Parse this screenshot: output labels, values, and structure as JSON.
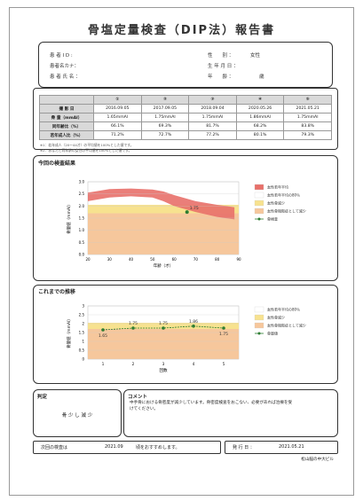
{
  "title": "骨塩定量検査（DIP法）報告書",
  "patient": {
    "id_label": "患 者 I D :",
    "kana_label": "患者名カナ：",
    "name_label": "患 者 氏 名 ：",
    "sex_label": "性　　別 ：",
    "sex_value": "女性",
    "dob_label": "生 年 月 日 ：",
    "age_label": "年　　齢 ：",
    "age_unit": "歳"
  },
  "results": {
    "row_labels": [
      "撮 影 日",
      "骨 量（mmAl）",
      "同年齢比（%）",
      "若年成人比（%）"
    ],
    "columns": [
      "①",
      "②",
      "③",
      "④",
      "⑤"
    ],
    "dates": [
      "2016.09.05",
      "2017.09.05",
      "2018.09.04",
      "2020.05.26",
      "2021.05.21"
    ],
    "bone": [
      "1.65mmAl",
      "1.75mmAl",
      "1.75mmAl",
      "1.86mmAl",
      "1.75mmAl"
    ],
    "same_age": [
      "66.1%",
      "69.3%",
      "81.7%",
      "68.2%",
      "83.8%"
    ],
    "young_adult": [
      "71.2%",
      "72.7%",
      "77.2%",
      "80.1%",
      "79.3%"
    ]
  },
  "notes": [
    "※1：若年成人（20～44才）の平均値を100%とした値です。",
    "※2：あなたと同年齢の女性の平均値を100%とした値です。"
  ],
  "current": {
    "heading": "今回の検査結果",
    "legend": [
      "女性若年平均",
      "女性若年平均の80％",
      "女性骨減少",
      "女性骨粗鬆症として減少",
      "骨検査"
    ],
    "point_label": "1.75",
    "xlabel": "年齢（才）",
    "ylabel": "骨量値（mmAl）",
    "x_ticks": [
      "20",
      "30",
      "40",
      "50",
      "60",
      "70",
      "80",
      "90"
    ],
    "y_ticks": [
      "3.0",
      "2.5",
      "2.0",
      "1.5",
      "1.0",
      "0.5",
      "0.0"
    ]
  },
  "history": {
    "heading": "これまでの推移",
    "legend": [
      "女性若年平均の80％",
      "女性骨減少",
      "女性骨粗鬆症として減少",
      "骨量値"
    ],
    "values": [
      1.65,
      1.75,
      1.75,
      1.86,
      1.75
    ],
    "point_labels": [
      "1.65",
      "1.75",
      "1.75",
      "1.86",
      "1.75"
    ],
    "x_ticks": [
      "1",
      "2",
      "3",
      "4",
      "5"
    ],
    "xlabel": "回数",
    "ylabel": "骨量値（mmAl）",
    "y_ticks": [
      "3",
      "2.5",
      "2",
      "1.5",
      "1",
      "0.5",
      "0"
    ]
  },
  "judgement": {
    "heading": "判定",
    "value": "骨 少 し 減 少"
  },
  "comment": {
    "heading": "コメント",
    "text": "中手骨における骨密度が減少しています。骨密度検査をおこない、必要があれば治療を受けてください。"
  },
  "footer": {
    "next_label": "次回の検査は",
    "next_date": "2021.09",
    "next_suffix": "頃をおすすめします。",
    "issue_label": "発 行 日 ：",
    "issue_date": "2021.05.21",
    "clinic": "松山脳の中大ビル"
  }
}
